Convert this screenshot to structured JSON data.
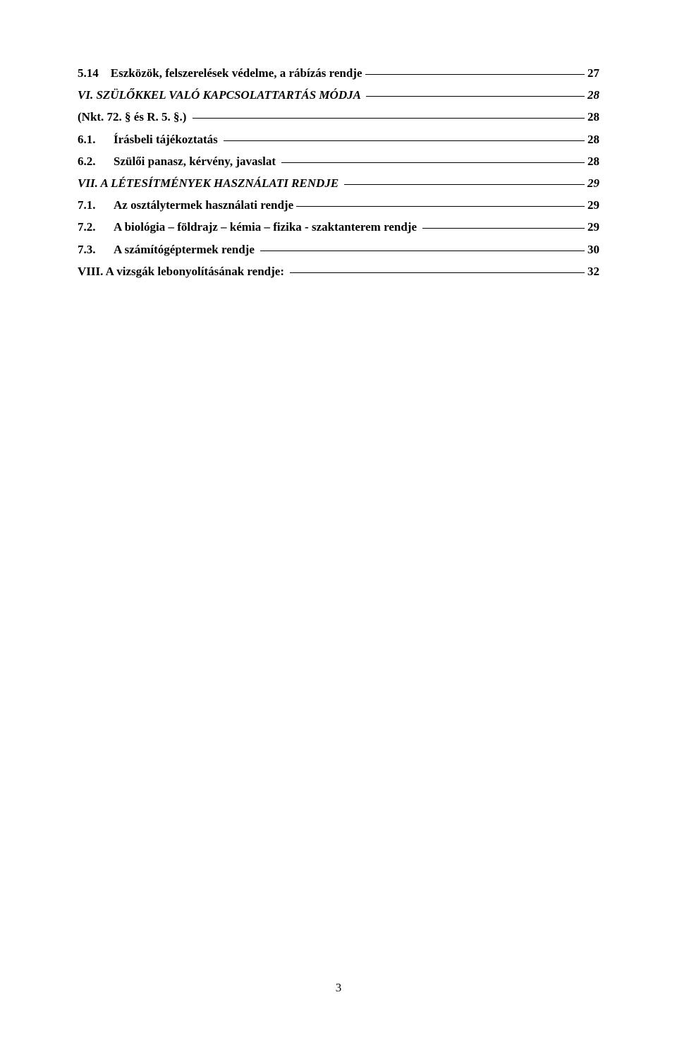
{
  "toc": [
    {
      "num": "5.14    ",
      "title": "Eszközök, felszerelések védelme, a rábízás rendje",
      "page": "27",
      "italic": false
    },
    {
      "num": "",
      "title": "VI. SZÜLŐKKEL VALÓ KAPCSOLATTARTÁS MÓDJA ",
      "page": "28",
      "italic": true
    },
    {
      "num": "",
      "title": "(Nkt. 72. § és R. 5. §.) ",
      "page": "28",
      "italic": false
    },
    {
      "num": "6.1.      ",
      "title": "Írásbeli tájékoztatás ",
      "page": "28",
      "italic": false
    },
    {
      "num": "6.2.      ",
      "title": "Szülői panasz, kérvény, javaslat ",
      "page": "28",
      "italic": false
    },
    {
      "num": "",
      "title": "VII. A LÉTESÍTMÉNYEK HASZNÁLATI RENDJE ",
      "page": "29",
      "italic": true
    },
    {
      "num": "7.1.      ",
      "title": "Az osztálytermek használati rendje",
      "page": "29",
      "italic": false
    },
    {
      "num": "7.2.      ",
      "title": "A biológia – földrajz – kémia – fizika - szaktanterem rendje ",
      "page": "29",
      "italic": false
    },
    {
      "num": "7.3.      ",
      "title": "A számítógéptermek rendje ",
      "page": "30",
      "italic": false
    },
    {
      "num": "",
      "title": "VIII. A vizsgák lebonyolításának rendje: ",
      "page": "32",
      "italic": false
    }
  ],
  "pageNumber": "3"
}
